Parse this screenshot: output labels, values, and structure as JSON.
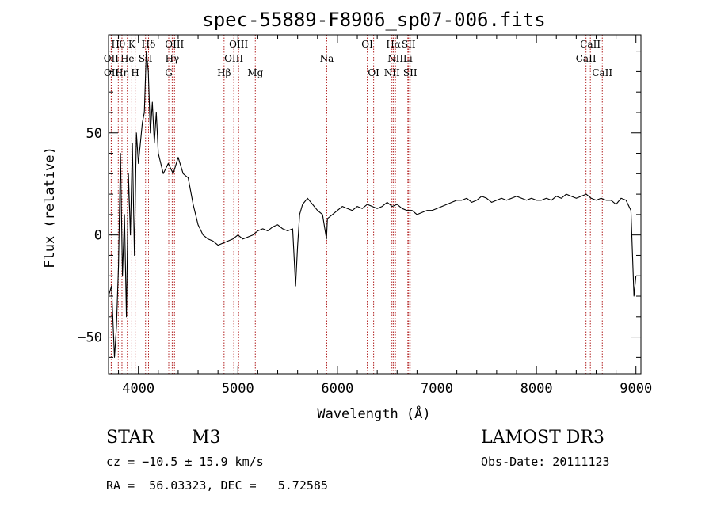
{
  "chart_data": {
    "type": "line",
    "title": "spec-55889-F8906_sp07-006.fits",
    "xlabel": "Wavelength (Å)",
    "ylabel": "Flux (relative)",
    "xlim": [
      3700,
      9050
    ],
    "ylim": [
      -68,
      98
    ],
    "x_ticks": [
      4000,
      5000,
      6000,
      7000,
      8000,
      9000
    ],
    "y_ticks": [
      -50,
      0,
      50
    ],
    "x_tick_labels": [
      "4000",
      "5000",
      "6000",
      "7000",
      "8000",
      "9000"
    ],
    "y_tick_labels": [
      "−50",
      "0",
      "50"
    ],
    "series": [
      {
        "name": "flux",
        "x": [
          3700,
          3730,
          3760,
          3780,
          3800,
          3820,
          3840,
          3860,
          3880,
          3900,
          3920,
          3940,
          3960,
          3980,
          4000,
          4020,
          4040,
          4060,
          4080,
          4100,
          4120,
          4140,
          4160,
          4180,
          4200,
          4250,
          4300,
          4350,
          4400,
          4450,
          4500,
          4550,
          4600,
          4650,
          4700,
          4750,
          4800,
          4850,
          4900,
          4950,
          5000,
          5050,
          5100,
          5150,
          5200,
          5250,
          5300,
          5350,
          5400,
          5450,
          5500,
          5550,
          5580,
          5600,
          5620,
          5650,
          5700,
          5750,
          5800,
          5850,
          5890,
          5900,
          5950,
          6000,
          6050,
          6100,
          6150,
          6200,
          6250,
          6300,
          6350,
          6400,
          6450,
          6500,
          6550,
          6600,
          6650,
          6700,
          6750,
          6800,
          6850,
          6900,
          6950,
          7000,
          7050,
          7100,
          7150,
          7200,
          7250,
          7300,
          7350,
          7400,
          7450,
          7500,
          7550,
          7600,
          7650,
          7700,
          7750,
          7800,
          7850,
          7900,
          7950,
          8000,
          8050,
          8100,
          8150,
          8200,
          8250,
          8300,
          8350,
          8400,
          8450,
          8500,
          8550,
          8600,
          8650,
          8700,
          8750,
          8800,
          8850,
          8900,
          8950,
          8980,
          9000
        ],
        "y": [
          -30,
          -25,
          -60,
          -45,
          -15,
          40,
          -20,
          10,
          -40,
          30,
          0,
          45,
          -10,
          50,
          35,
          45,
          55,
          60,
          90,
          80,
          50,
          65,
          45,
          60,
          40,
          30,
          35,
          30,
          38,
          30,
          28,
          15,
          5,
          0,
          -2,
          -3,
          -5,
          -4,
          -3,
          -2,
          0,
          -2,
          -1,
          0,
          2,
          3,
          2,
          4,
          5,
          3,
          2,
          3,
          -25,
          -5,
          10,
          15,
          18,
          15,
          12,
          10,
          -2,
          8,
          10,
          12,
          14,
          13,
          12,
          14,
          13,
          15,
          14,
          13,
          14,
          16,
          14,
          15,
          13,
          12,
          12,
          10,
          11,
          12,
          12,
          13,
          14,
          15,
          16,
          17,
          17,
          18,
          16,
          17,
          19,
          18,
          16,
          17,
          18,
          17,
          18,
          19,
          18,
          17,
          18,
          17,
          17,
          18,
          17,
          19,
          18,
          20,
          19,
          18,
          19,
          20,
          18,
          17,
          18,
          17,
          17,
          15,
          18,
          17,
          12,
          -30,
          -20
        ]
      }
    ],
    "line_markers": [
      {
        "label": "Hθ",
        "x": 3798,
        "row": 0,
        "color": "#b22222"
      },
      {
        "label": "K",
        "x": 3934,
        "row": 0,
        "color": "#b22222"
      },
      {
        "label": "Hδ",
        "x": 4102,
        "row": 0,
        "color": "#b22222"
      },
      {
        "label": "OIII",
        "x": 4363,
        "row": 0,
        "color": "#b22222"
      },
      {
        "label": "OIII",
        "x": 5007,
        "row": 0,
        "color": "#b22222"
      },
      {
        "label": "OI",
        "x": 6300,
        "row": 0,
        "color": "#b22222"
      },
      {
        "label": "Hα",
        "x": 6563,
        "row": 0,
        "color": "#b22222"
      },
      {
        "label": "SII",
        "x": 6716,
        "row": 0,
        "color": "#b22222"
      },
      {
        "label": "CaII",
        "x": 8542,
        "row": 0,
        "color": "#b22222"
      },
      {
        "label": "OII",
        "x": 3727,
        "row": 1,
        "color": "#b22222"
      },
      {
        "label": "He",
        "x": 3889,
        "row": 1,
        "color": "#b22222"
      },
      {
        "label": "SII",
        "x": 4072,
        "row": 1,
        "color": "#b22222"
      },
      {
        "label": "Hγ",
        "x": 4340,
        "row": 1,
        "color": "#b22222"
      },
      {
        "label": "OIII",
        "x": 4959,
        "row": 1,
        "color": "#b22222"
      },
      {
        "label": "Na",
        "x": 5893,
        "row": 1,
        "color": "#b22222"
      },
      {
        "label": "NII",
        "x": 6583,
        "row": 1,
        "color": "#b22222"
      },
      {
        "label": "Li",
        "x": 6708,
        "row": 1,
        "color": "#b22222"
      },
      {
        "label": "CaII",
        "x": 8498,
        "row": 1,
        "color": "#b22222"
      },
      {
        "label": "OII",
        "x": 3729,
        "row": 2,
        "color": "#b22222"
      },
      {
        "label": "Hη",
        "x": 3835,
        "row": 2,
        "color": "#b22222"
      },
      {
        "label": "H",
        "x": 3968,
        "row": 2,
        "color": "#b22222"
      },
      {
        "label": "G",
        "x": 4305,
        "row": 2,
        "color": "#b22222"
      },
      {
        "label": "Hβ",
        "x": 4861,
        "row": 2,
        "color": "#b22222"
      },
      {
        "label": "Mg",
        "x": 5175,
        "row": 2,
        "color": "#b22222"
      },
      {
        "label": "OI",
        "x": 6364,
        "row": 2,
        "color": "#b22222"
      },
      {
        "label": "NII",
        "x": 6548,
        "row": 2,
        "color": "#b22222"
      },
      {
        "label": "SII",
        "x": 6731,
        "row": 2,
        "color": "#b22222"
      },
      {
        "label": "CaII",
        "x": 8662,
        "row": 2,
        "color": "#b22222"
      }
    ]
  },
  "info": {
    "object_class": "STAR",
    "subclass": "M3",
    "survey": "LAMOST DR3",
    "redshift_text": "cz = −10.5 ± 15.9 km/s",
    "obs_date_text": "Obs-Date: 20111123",
    "coords_text": "RA =  56.03323, DEC =   5.72585"
  }
}
